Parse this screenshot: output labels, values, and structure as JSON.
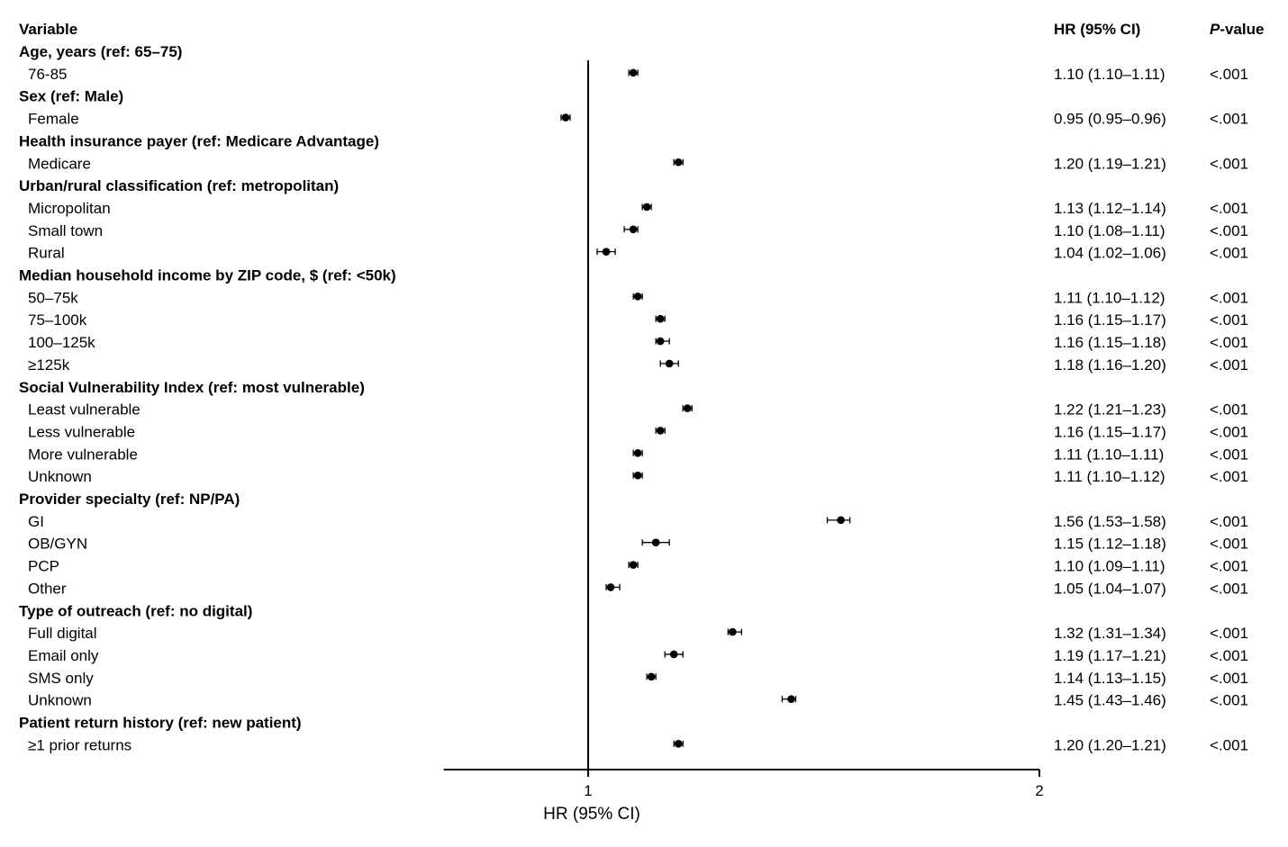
{
  "headers": {
    "variable": "Variable",
    "hr_ci": "HR (95% CI)",
    "p_italic": "P",
    "p_rest": "-value"
  },
  "chart_data": {
    "type": "forest",
    "xlabel": "HR (95% CI)",
    "xlim": [
      0.68,
      2.0
    ],
    "reference_line": 1,
    "x_ticks": [
      1,
      2
    ],
    "x_tick_labels": [
      "1",
      "2"
    ],
    "grid": false,
    "groups": [
      {
        "label": "Age, years (ref: 65–75)",
        "rows": [
          {
            "label": "76-85",
            "hr": 1.1,
            "lo": 1.1,
            "hi": 1.11,
            "text": "1.10 (1.10–1.11)",
            "p": "<.001"
          }
        ]
      },
      {
        "label": "Sex (ref: Male)",
        "rows": [
          {
            "label": "Female",
            "hr": 0.95,
            "lo": 0.95,
            "hi": 0.96,
            "text": "0.95 (0.95–0.96)",
            "p": "<.001"
          }
        ]
      },
      {
        "label": "Health insurance payer (ref: Medicare Advantage)",
        "rows": [
          {
            "label": "Medicare",
            "hr": 1.2,
            "lo": 1.19,
            "hi": 1.21,
            "text": "1.20 (1.19–1.21)",
            "p": "<.001"
          }
        ]
      },
      {
        "label": "Urban/rural classification (ref: metropolitan)",
        "rows": [
          {
            "label": "Micropolitan",
            "hr": 1.13,
            "lo": 1.12,
            "hi": 1.14,
            "text": "1.13 (1.12–1.14)",
            "p": "<.001"
          },
          {
            "label": "Small town",
            "hr": 1.1,
            "lo": 1.08,
            "hi": 1.11,
            "text": "1.10 (1.08–1.11)",
            "p": "<.001"
          },
          {
            "label": "Rural",
            "hr": 1.04,
            "lo": 1.02,
            "hi": 1.06,
            "text": "1.04 (1.02–1.06)",
            "p": "<.001"
          }
        ]
      },
      {
        "label": "Median household income by ZIP code, $ (ref: <50k)",
        "rows": [
          {
            "label": "50–75k",
            "hr": 1.11,
            "lo": 1.1,
            "hi": 1.12,
            "text": "1.11 (1.10–1.12)",
            "p": "<.001"
          },
          {
            "label": "75–100k",
            "hr": 1.16,
            "lo": 1.15,
            "hi": 1.17,
            "text": "1.16 (1.15–1.17)",
            "p": "<.001"
          },
          {
            "label": "100–125k",
            "hr": 1.16,
            "lo": 1.15,
            "hi": 1.18,
            "text": "1.16 (1.15–1.18)",
            "p": "<.001"
          },
          {
            "label": "≥125k",
            "hr": 1.18,
            "lo": 1.16,
            "hi": 1.2,
            "text": "1.18 (1.16–1.20)",
            "p": "<.001"
          }
        ]
      },
      {
        "label": "Social Vulnerability Index (ref: most vulnerable)",
        "rows": [
          {
            "label": "Least vulnerable",
            "hr": 1.22,
            "lo": 1.21,
            "hi": 1.23,
            "text": "1.22 (1.21–1.23)",
            "p": "<.001"
          },
          {
            "label": "Less vulnerable",
            "hr": 1.16,
            "lo": 1.15,
            "hi": 1.17,
            "text": "1.16 (1.15–1.17)",
            "p": "<.001"
          },
          {
            "label": "More vulnerable",
            "hr": 1.11,
            "lo": 1.1,
            "hi": 1.11,
            "text": "1.11 (1.10–1.11)",
            "p": "<.001"
          },
          {
            "label": "Unknown",
            "hr": 1.11,
            "lo": 1.1,
            "hi": 1.12,
            "text": "1.11 (1.10–1.12)",
            "p": "<.001"
          }
        ]
      },
      {
        "label": "Provider specialty (ref: NP/PA)",
        "rows": [
          {
            "label": "GI",
            "hr": 1.56,
            "lo": 1.53,
            "hi": 1.58,
            "text": "1.56 (1.53–1.58)",
            "p": "<.001"
          },
          {
            "label": "OB/GYN",
            "hr": 1.15,
            "lo": 1.12,
            "hi": 1.18,
            "text": "1.15 (1.12–1.18)",
            "p": "<.001"
          },
          {
            "label": "PCP",
            "hr": 1.1,
            "lo": 1.09,
            "hi": 1.11,
            "text": "1.10 (1.09–1.11)",
            "p": "<.001"
          },
          {
            "label": "Other",
            "hr": 1.05,
            "lo": 1.04,
            "hi": 1.07,
            "text": "1.05 (1.04–1.07)",
            "p": "<.001"
          }
        ]
      },
      {
        "label": "Type of outreach (ref: no digital)",
        "rows": [
          {
            "label": "Full digital",
            "hr": 1.32,
            "lo": 1.31,
            "hi": 1.34,
            "text": "1.32 (1.31–1.34)",
            "p": "<.001"
          },
          {
            "label": "Email only",
            "hr": 1.19,
            "lo": 1.17,
            "hi": 1.21,
            "text": "1.19 (1.17–1.21)",
            "p": "<.001"
          },
          {
            "label": "SMS only",
            "hr": 1.14,
            "lo": 1.13,
            "hi": 1.15,
            "text": "1.14 (1.13–1.15)",
            "p": "<.001"
          },
          {
            "label": "Unknown",
            "hr": 1.45,
            "lo": 1.43,
            "hi": 1.46,
            "text": "1.45 (1.43–1.46)",
            "p": "<.001"
          }
        ]
      },
      {
        "label": "Patient return history (ref: new patient)",
        "rows": [
          {
            "label": "≥1 prior returns",
            "hr": 1.2,
            "lo": 1.2,
            "hi": 1.21,
            "text": "1.20 (1.20–1.21)",
            "p": "<.001"
          }
        ]
      }
    ]
  }
}
